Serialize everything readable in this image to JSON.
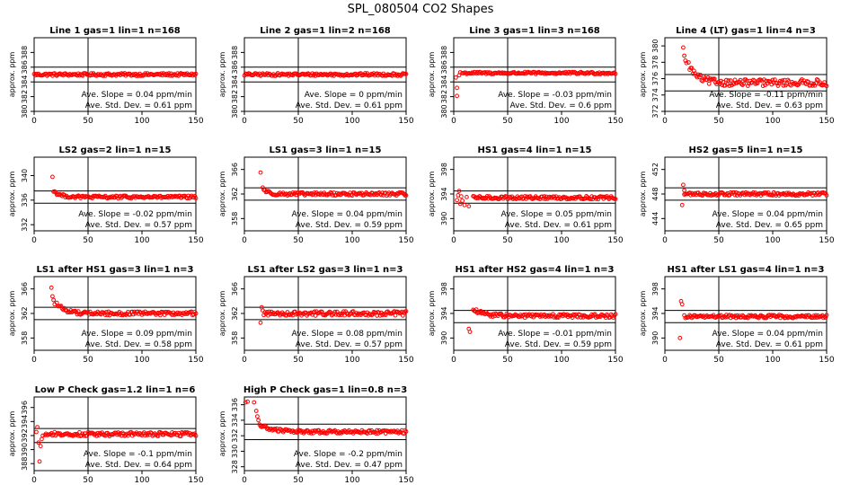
{
  "figure": {
    "title": "SPL_080504  CO2 Shapes"
  },
  "common": {
    "ylabel": "approx. ppm",
    "xlim": [
      0,
      150
    ],
    "xticks": [
      0,
      50,
      100,
      150
    ],
    "slope_prefix": "Ave. Slope = ",
    "slope_unit": " ppm/min",
    "sd_prefix": "Ave. Std. Dev. = ",
    "sd_unit": " ppm",
    "vline_x": 50,
    "point_color": "#ff0000"
  },
  "chart_data": [
    {
      "type": "scatter",
      "title": "Line 1 gas=1 lin=1 n=168",
      "ylim": [
        380,
        390
      ],
      "yticks": [
        380,
        382,
        384,
        386,
        388
      ],
      "hlines": [
        386,
        384
      ],
      "slope": "0.04",
      "sd": "0.61",
      "series": [
        {
          "shape": "flat",
          "start": 0,
          "end": 150,
          "level": 385,
          "noise": 0.18
        }
      ]
    },
    {
      "type": "scatter",
      "title": "Line 2 gas=1 lin=2 n=168",
      "ylim": [
        380,
        390
      ],
      "yticks": [
        380,
        382,
        384,
        386,
        388
      ],
      "hlines": [
        386,
        384
      ],
      "slope": "0",
      "sd": "0.61",
      "series": [
        {
          "shape": "flat",
          "start": 0,
          "end": 150,
          "level": 385,
          "noise": 0.18
        }
      ]
    },
    {
      "type": "scatter",
      "title": "Line 3 gas=1 lin=3 n=168",
      "ylim": [
        380,
        390
      ],
      "yticks": [
        380,
        382,
        384,
        386,
        388
      ],
      "hlines": [
        386,
        384
      ],
      "slope": "-0.03",
      "sd": "0.6",
      "series": [
        {
          "shape": "flat",
          "start": 8,
          "end": 150,
          "level": 385.2,
          "noise": 0.15
        }
      ],
      "outliers": [
        [
          2,
          384.6
        ],
        [
          3,
          383.2
        ],
        [
          3,
          382.1
        ],
        [
          5,
          384.9
        ],
        [
          6,
          385.3
        ]
      ]
    },
    {
      "type": "scatter",
      "title": "Line 4 (LT) gas=1 lin=4 n=3",
      "ylim": [
        372,
        381
      ],
      "yticks": [
        372,
        374,
        376,
        378,
        380
      ],
      "hlines": [
        376.5,
        374.5
      ],
      "slope": "-0.11",
      "sd": "0.63",
      "series": [
        {
          "shape": "decay",
          "start": 22,
          "end": 150,
          "level": 375.5,
          "amp": 2.2,
          "tau": 8,
          "noise": 0.4
        }
      ],
      "outliers": [
        [
          17,
          379.8
        ],
        [
          18,
          378.8
        ],
        [
          19,
          378.2
        ],
        [
          20,
          377.9
        ]
      ]
    },
    {
      "type": "scatter",
      "title": "LS2 gas=2 lin=1 n=15",
      "ylim": [
        331,
        343
      ],
      "yticks": [
        332,
        336,
        340
      ],
      "hlines": [
        337.5,
        335.5
      ],
      "slope": "-0.02",
      "sd": "0.57",
      "series": [
        {
          "shape": "decay",
          "start": 18,
          "end": 150,
          "level": 336.5,
          "amp": 1.0,
          "tau": 6,
          "noise": 0.22
        }
      ],
      "outliers": [
        [
          17,
          339.8
        ]
      ]
    },
    {
      "type": "scatter",
      "title": "LS1 gas=3 lin=1 n=15",
      "ylim": [
        356,
        368
      ],
      "yticks": [
        358,
        362,
        366
      ],
      "hlines": [
        363,
        361
      ],
      "slope": "0.04",
      "sd": "0.59",
      "series": [
        {
          "shape": "decay",
          "start": 17,
          "end": 150,
          "level": 362,
          "amp": 1.0,
          "tau": 4,
          "noise": 0.25
        }
      ],
      "outliers": [
        [
          15,
          365.5
        ]
      ]
    },
    {
      "type": "scatter",
      "title": "HS1 gas=4 lin=1 n=15",
      "ylim": [
        388,
        400
      ],
      "yticks": [
        390,
        394,
        398
      ],
      "hlines": [
        394.5,
        392.5
      ],
      "slope": "0.05",
      "sd": "0.61",
      "series": [
        {
          "shape": "flat",
          "start": 18,
          "end": 150,
          "level": 393.4,
          "noise": 0.25
        }
      ],
      "outliers": [
        [
          3,
          393.0
        ],
        [
          4,
          393.8
        ],
        [
          5,
          394.5
        ],
        [
          6,
          392.4
        ],
        [
          7,
          393.6
        ],
        [
          8,
          392.9
        ],
        [
          10,
          392.2
        ],
        [
          12,
          393.5
        ],
        [
          14,
          392.0
        ]
      ]
    },
    {
      "type": "scatter",
      "title": "HS2 gas=5 lin=1 n=15",
      "ylim": [
        442,
        454
      ],
      "yticks": [
        444,
        448,
        452
      ],
      "hlines": [
        449,
        447
      ],
      "slope": "0.04",
      "sd": "0.65",
      "series": [
        {
          "shape": "flat",
          "start": 18,
          "end": 150,
          "level": 448,
          "noise": 0.25
        }
      ],
      "outliers": [
        [
          16,
          446.2
        ],
        [
          17,
          449.5
        ],
        [
          18,
          448.6
        ]
      ]
    },
    {
      "type": "scatter",
      "title": "LS1 after HS1 gas=3 lin=1 n=3",
      "ylim": [
        356,
        368
      ],
      "yticks": [
        358,
        362,
        366
      ],
      "hlines": [
        363,
        361
      ],
      "slope": "0.09",
      "sd": "0.58",
      "series": [
        {
          "shape": "decay",
          "start": 21,
          "end": 150,
          "level": 362,
          "amp": 1.6,
          "tau": 8,
          "noise": 0.3
        }
      ],
      "outliers": [
        [
          16,
          366.2
        ],
        [
          17,
          364.8
        ],
        [
          18,
          364.2
        ],
        [
          19,
          363.5
        ]
      ]
    },
    {
      "type": "scatter",
      "title": "LS1 after LS2 gas=3 lin=1 n=3",
      "ylim": [
        356,
        368
      ],
      "yticks": [
        358,
        362,
        366
      ],
      "hlines": [
        363,
        361
      ],
      "slope": "0.08",
      "sd": "0.57",
      "series": [
        {
          "shape": "flat",
          "start": 18,
          "end": 150,
          "level": 362,
          "noise": 0.35
        }
      ],
      "outliers": [
        [
          15,
          360.5
        ],
        [
          16,
          363.0
        ],
        [
          17,
          362.5
        ]
      ]
    },
    {
      "type": "scatter",
      "title": "HS1 after HS2 gas=4 lin=1 n=3",
      "ylim": [
        388,
        400
      ],
      "yticks": [
        390,
        394,
        398
      ],
      "hlines": [
        394.5,
        392.5
      ],
      "slope": "-0.01",
      "sd": "0.59",
      "series": [
        {
          "shape": "decay",
          "start": 18,
          "end": 150,
          "level": 393.6,
          "amp": 1.0,
          "tau": 10,
          "noise": 0.3
        }
      ],
      "outliers": [
        [
          14,
          391.5
        ],
        [
          15,
          391.0
        ]
      ]
    },
    {
      "type": "scatter",
      "title": "HS1 after LS1 gas=4 lin=1 n=3",
      "ylim": [
        388,
        400
      ],
      "yticks": [
        390,
        394,
        398
      ],
      "hlines": [
        394.5,
        392.5
      ],
      "slope": "0.04",
      "sd": "0.61",
      "series": [
        {
          "shape": "flat",
          "start": 18,
          "end": 150,
          "level": 393.5,
          "noise": 0.25
        }
      ],
      "outliers": [
        [
          14,
          390.0
        ],
        [
          15,
          396.0
        ],
        [
          16,
          395.5
        ]
      ]
    },
    {
      "type": "scatter",
      "title": "Low P Check gas=1.2 lin=1 n=6",
      "ylim": [
        387,
        397.5
      ],
      "yticks": [
        388,
        390,
        392,
        394,
        396
      ],
      "hlines": [
        393,
        391
      ],
      "slope": "-0.1",
      "sd": "0.64",
      "series": [
        {
          "shape": "flat",
          "start": 10,
          "end": 150,
          "level": 392.2,
          "noise": 0.28
        }
      ],
      "outliers": [
        [
          2,
          392.5
        ],
        [
          3,
          393.2
        ],
        [
          4,
          391.0
        ],
        [
          5,
          388.3
        ],
        [
          6,
          390.5
        ],
        [
          7,
          391.5
        ],
        [
          8,
          392.0
        ]
      ]
    },
    {
      "type": "scatter",
      "title": "High P Check gas=1 lin=0.8 n=3",
      "ylim": [
        327.5,
        337
      ],
      "yticks": [
        328,
        330,
        332,
        334,
        336
      ],
      "hlines": [
        333.5,
        331.5
      ],
      "slope": "-0.2",
      "sd": "0.47",
      "series": [
        {
          "shape": "decay",
          "start": 14,
          "end": 150,
          "level": 332.5,
          "amp": 0.9,
          "tau": 12,
          "noise": 0.22
        }
      ],
      "outliers": [
        [
          1,
          336.3
        ],
        [
          3,
          336.4
        ],
        [
          9,
          336.3
        ],
        [
          11,
          335.2
        ],
        [
          12,
          334.5
        ],
        [
          13,
          334.0
        ]
      ]
    }
  ]
}
